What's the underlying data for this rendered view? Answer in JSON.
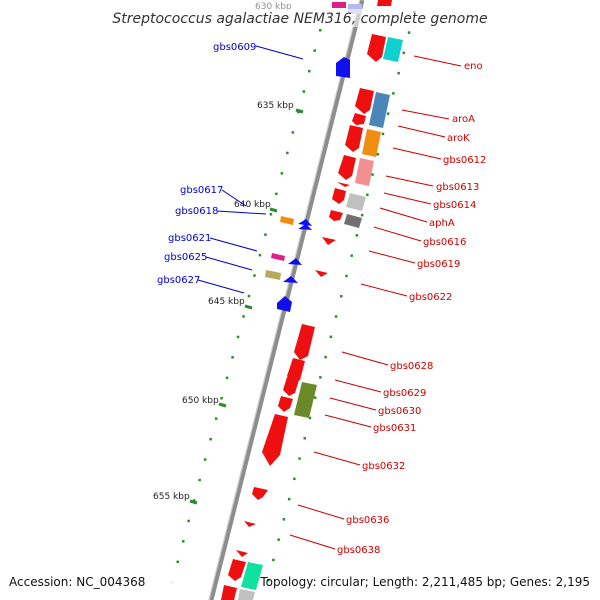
{
  "title": "Streptococcus agalactiae NEM316, complete genome",
  "footer": {
    "accession": "Accession: NC_004368",
    "summary": "Topology: circular; Length: 2,211,485 bp; Genes: 2,195"
  },
  "colors": {
    "backbone": "#8a8a8a",
    "tick": "#2d8a2d",
    "left_label": "#0000cc",
    "right_label": "#cc0000"
  },
  "kbp_labels": [
    "630 kbp",
    "635 kbp",
    "640 kbp",
    "645 kbp",
    "650 kbp",
    "655 kbp"
  ],
  "left_genes": [
    "gbs0609",
    "gbs0617",
    "gbs0618",
    "gbs0621",
    "gbs0625",
    "gbs0627"
  ],
  "right_genes": [
    "eno",
    "aroA",
    "aroK",
    "gbs0612",
    "gbs0613",
    "gbs0614",
    "aphA",
    "gbs0616",
    "gbs0619",
    "gbs0622",
    "gbs0628",
    "gbs0629",
    "gbs0630",
    "gbs0631",
    "gbs0632",
    "gbs0636",
    "gbs0638"
  ]
}
